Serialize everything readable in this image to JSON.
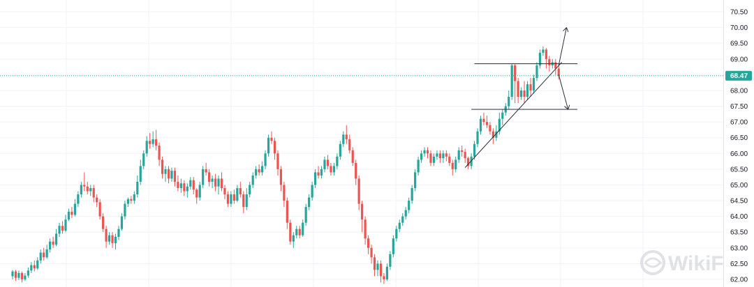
{
  "chart_data": {
    "type": "candlestick",
    "ylim": [
      61.9,
      70.8
    ],
    "yticks": [
      "70.50",
      "70.00",
      "69.50",
      "69.00",
      "68.50",
      "68.00",
      "67.50",
      "67.00",
      "66.50",
      "66.00",
      "65.50",
      "65.00",
      "64.50",
      "64.00",
      "63.50",
      "63.00",
      "62.50",
      "62.00"
    ],
    "current_price": "68.47",
    "grid": true,
    "colors": {
      "up": "#26a69a",
      "down": "#ef5350",
      "grid": "#f0f3fa",
      "axis": "#e0e3eb",
      "price_line": "#26a69a",
      "drawing": "#2a2e39"
    },
    "candles": [
      [
        62.1,
        62.25,
        62.0,
        62.3
      ],
      [
        62.25,
        62.05,
        61.95,
        62.3
      ],
      [
        62.05,
        62.2,
        61.98,
        62.28
      ],
      [
        62.2,
        62.0,
        61.9,
        62.25
      ],
      [
        62.0,
        62.12,
        61.95,
        62.2
      ],
      [
        62.12,
        62.28,
        62.05,
        62.38
      ],
      [
        62.28,
        62.45,
        62.2,
        62.55
      ],
      [
        62.45,
        62.35,
        62.25,
        62.6
      ],
      [
        62.35,
        62.6,
        62.3,
        62.7
      ],
      [
        62.6,
        62.85,
        62.5,
        62.95
      ],
      [
        62.85,
        62.7,
        62.6,
        63.0
      ],
      [
        62.7,
        62.95,
        62.65,
        63.1
      ],
      [
        62.95,
        63.2,
        62.85,
        63.3
      ],
      [
        63.2,
        63.1,
        63.0,
        63.35
      ],
      [
        63.1,
        63.45,
        63.05,
        63.6
      ],
      [
        63.45,
        63.7,
        63.35,
        63.8
      ],
      [
        63.7,
        63.55,
        63.45,
        63.85
      ],
      [
        63.55,
        63.9,
        63.5,
        64.05
      ],
      [
        63.9,
        64.15,
        63.85,
        64.25
      ],
      [
        64.15,
        64.05,
        63.95,
        64.3
      ],
      [
        64.05,
        64.4,
        64.0,
        64.55
      ],
      [
        64.4,
        64.7,
        64.3,
        64.8
      ],
      [
        64.7,
        65.0,
        64.6,
        65.1
      ],
      [
        65.0,
        64.95,
        64.8,
        65.4
      ],
      [
        64.95,
        64.8,
        64.7,
        65.1
      ],
      [
        64.8,
        64.9,
        64.65,
        65.0
      ],
      [
        64.9,
        64.6,
        64.45,
        65.0
      ],
      [
        64.6,
        64.45,
        64.3,
        64.7
      ],
      [
        64.45,
        64.0,
        63.9,
        64.55
      ],
      [
        64.0,
        63.6,
        63.5,
        64.1
      ],
      [
        63.6,
        63.2,
        63.0,
        63.7
      ],
      [
        63.2,
        63.4,
        63.1,
        63.5
      ],
      [
        63.4,
        63.15,
        63.0,
        63.5
      ],
      [
        63.15,
        63.35,
        62.95,
        63.45
      ],
      [
        63.35,
        63.6,
        63.25,
        63.7
      ],
      [
        63.6,
        64.0,
        63.55,
        64.1
      ],
      [
        64.0,
        64.4,
        63.9,
        64.5
      ],
      [
        64.4,
        64.55,
        64.3,
        64.6
      ],
      [
        64.55,
        64.5,
        64.4,
        64.65
      ],
      [
        64.5,
        64.7,
        64.4,
        64.8
      ],
      [
        64.7,
        65.1,
        64.6,
        65.3
      ],
      [
        65.1,
        65.6,
        65.0,
        65.8
      ],
      [
        65.6,
        66.0,
        65.5,
        66.1
      ],
      [
        66.0,
        66.4,
        65.9,
        66.55
      ],
      [
        66.4,
        66.3,
        66.15,
        66.65
      ],
      [
        66.3,
        66.45,
        66.2,
        66.7
      ],
      [
        66.45,
        66.25,
        66.1,
        66.75
      ],
      [
        66.25,
        65.8,
        65.6,
        66.35
      ],
      [
        65.8,
        65.35,
        65.2,
        65.9
      ],
      [
        65.35,
        65.5,
        65.1,
        65.6
      ],
      [
        65.5,
        65.2,
        65.05,
        65.6
      ],
      [
        65.2,
        65.45,
        65.1,
        65.55
      ],
      [
        65.45,
        65.1,
        64.95,
        65.55
      ],
      [
        65.1,
        64.9,
        64.8,
        65.3
      ],
      [
        64.9,
        65.05,
        64.75,
        65.2
      ],
      [
        65.05,
        64.8,
        64.65,
        65.15
      ],
      [
        64.8,
        64.95,
        64.6,
        65.05
      ],
      [
        64.95,
        65.15,
        64.85,
        65.25
      ],
      [
        65.15,
        64.85,
        64.7,
        65.25
      ],
      [
        64.85,
        64.6,
        64.4,
        64.9
      ],
      [
        64.6,
        65.0,
        64.5,
        65.1
      ],
      [
        65.0,
        65.5,
        64.9,
        65.6
      ],
      [
        65.5,
        65.4,
        65.3,
        65.7
      ],
      [
        65.4,
        65.1,
        64.95,
        65.5
      ],
      [
        65.1,
        65.2,
        64.9,
        65.3
      ],
      [
        65.2,
        64.95,
        64.8,
        65.35
      ],
      [
        64.95,
        65.2,
        64.7,
        65.3
      ],
      [
        65.2,
        64.9,
        64.8,
        65.4
      ],
      [
        64.9,
        64.7,
        64.55,
        65.0
      ],
      [
        64.7,
        64.4,
        64.3,
        64.8
      ],
      [
        64.4,
        64.7,
        64.3,
        64.8
      ],
      [
        64.7,
        64.5,
        64.4,
        64.85
      ],
      [
        64.5,
        64.9,
        64.45,
        65.0
      ],
      [
        64.9,
        64.7,
        64.6,
        65.1
      ],
      [
        64.7,
        64.3,
        64.1,
        64.8
      ],
      [
        64.3,
        64.7,
        64.2,
        64.9
      ],
      [
        64.7,
        65.0,
        64.6,
        65.1
      ],
      [
        65.0,
        65.3,
        64.9,
        65.4
      ],
      [
        65.3,
        65.5,
        65.2,
        65.6
      ],
      [
        65.5,
        65.4,
        65.3,
        65.65
      ],
      [
        65.4,
        65.6,
        65.3,
        65.75
      ],
      [
        65.6,
        66.0,
        65.5,
        66.1
      ],
      [
        66.0,
        66.5,
        65.9,
        66.6
      ],
      [
        66.5,
        66.4,
        66.3,
        66.7
      ],
      [
        66.4,
        66.0,
        65.8,
        66.5
      ],
      [
        66.0,
        65.5,
        65.3,
        66.1
      ],
      [
        65.5,
        65.0,
        64.8,
        65.6
      ],
      [
        65.0,
        64.5,
        64.3,
        65.1
      ],
      [
        64.5,
        63.8,
        63.6,
        64.6
      ],
      [
        63.8,
        63.2,
        63.1,
        63.9
      ],
      [
        63.2,
        63.4,
        63.0,
        63.5
      ],
      [
        63.4,
        63.6,
        63.3,
        63.7
      ],
      [
        63.6,
        63.4,
        63.3,
        63.7
      ],
      [
        63.4,
        63.8,
        63.35,
        63.9
      ],
      [
        63.8,
        64.3,
        63.7,
        64.4
      ],
      [
        64.3,
        64.6,
        64.2,
        64.7
      ],
      [
        64.6,
        65.0,
        64.5,
        65.1
      ],
      [
        65.0,
        65.4,
        64.9,
        65.5
      ],
      [
        65.4,
        65.3,
        65.2,
        65.6
      ],
      [
        65.3,
        65.5,
        65.2,
        65.6
      ],
      [
        65.5,
        65.8,
        65.4,
        65.9
      ],
      [
        65.8,
        65.6,
        65.5,
        65.95
      ],
      [
        65.6,
        65.4,
        65.3,
        65.7
      ],
      [
        65.4,
        65.6,
        65.3,
        65.7
      ],
      [
        65.6,
        65.9,
        65.5,
        66.0
      ],
      [
        65.9,
        66.3,
        65.8,
        66.4
      ],
      [
        66.3,
        66.6,
        66.2,
        66.7
      ],
      [
        66.6,
        66.45,
        66.3,
        66.9
      ],
      [
        66.45,
        66.1,
        66.0,
        66.6
      ],
      [
        66.1,
        65.7,
        65.6,
        66.2
      ],
      [
        65.7,
        65.2,
        65.0,
        65.8
      ],
      [
        65.2,
        64.4,
        64.2,
        65.3
      ],
      [
        64.4,
        63.9,
        63.5,
        64.5
      ],
      [
        63.9,
        63.3,
        63.1,
        64.0
      ],
      [
        63.3,
        63.0,
        62.8,
        63.4
      ],
      [
        63.0,
        62.7,
        62.5,
        63.1
      ],
      [
        62.7,
        62.3,
        62.1,
        62.8
      ],
      [
        62.3,
        62.5,
        62.1,
        62.6
      ],
      [
        62.5,
        62.1,
        61.9,
        62.6
      ],
      [
        62.1,
        62.0,
        61.85,
        62.2
      ],
      [
        62.0,
        62.4,
        61.95,
        62.5
      ],
      [
        62.4,
        62.8,
        62.3,
        62.9
      ],
      [
        62.8,
        63.3,
        62.7,
        63.4
      ],
      [
        63.3,
        63.6,
        63.2,
        63.7
      ],
      [
        63.6,
        63.8,
        63.5,
        63.9
      ],
      [
        63.8,
        64.0,
        63.7,
        64.1
      ],
      [
        64.0,
        64.2,
        63.9,
        64.3
      ],
      [
        64.2,
        64.5,
        64.1,
        64.6
      ],
      [
        64.5,
        64.9,
        64.4,
        65.0
      ],
      [
        64.9,
        65.4,
        64.8,
        65.5
      ],
      [
        65.4,
        65.8,
        65.3,
        65.9
      ],
      [
        65.8,
        66.0,
        65.7,
        66.1
      ],
      [
        66.0,
        66.1,
        65.9,
        66.2
      ],
      [
        66.1,
        66.0,
        65.85,
        66.2
      ],
      [
        66.0,
        65.7,
        65.6,
        66.1
      ],
      [
        65.7,
        65.9,
        65.6,
        66.0
      ],
      [
        65.9,
        66.0,
        65.8,
        66.1
      ],
      [
        66.0,
        65.85,
        65.7,
        66.1
      ],
      [
        65.85,
        66.0,
        65.7,
        66.1
      ],
      [
        66.0,
        65.9,
        65.75,
        66.1
      ],
      [
        65.9,
        65.7,
        65.6,
        66.0
      ],
      [
        65.7,
        65.5,
        65.3,
        65.8
      ],
      [
        65.5,
        65.8,
        65.4,
        65.9
      ],
      [
        65.8,
        66.1,
        65.7,
        66.2
      ],
      [
        66.1,
        66.05,
        65.9,
        66.25
      ],
      [
        66.05,
        65.85,
        65.7,
        66.15
      ],
      [
        65.85,
        65.6,
        65.5,
        65.9
      ],
      [
        65.6,
        65.9,
        65.5,
        66.0
      ],
      [
        65.9,
        66.3,
        65.8,
        66.4
      ],
      [
        66.3,
        66.7,
        66.2,
        66.8
      ],
      [
        66.7,
        67.1,
        66.6,
        67.2
      ],
      [
        67.1,
        67.0,
        66.9,
        67.3
      ],
      [
        67.0,
        66.9,
        66.8,
        67.2
      ],
      [
        66.9,
        66.7,
        66.6,
        67.0
      ],
      [
        66.7,
        66.5,
        66.3,
        66.8
      ],
      [
        66.5,
        66.7,
        66.4,
        66.9
      ],
      [
        66.7,
        67.1,
        66.6,
        67.3
      ],
      [
        67.1,
        67.3,
        66.9,
        67.4
      ],
      [
        67.3,
        67.5,
        67.2,
        67.6
      ],
      [
        67.5,
        67.8,
        67.4,
        68.0
      ],
      [
        67.8,
        68.8,
        67.7,
        68.85
      ],
      [
        68.8,
        68.3,
        67.6,
        68.85
      ],
      [
        68.3,
        67.8,
        67.6,
        68.4
      ],
      [
        67.8,
        68.0,
        67.7,
        68.1
      ],
      [
        68.0,
        67.8,
        67.6,
        68.3
      ],
      [
        67.8,
        68.2,
        67.7,
        68.3
      ],
      [
        68.2,
        68.0,
        67.8,
        68.4
      ],
      [
        68.0,
        68.4,
        67.9,
        68.5
      ],
      [
        68.4,
        68.8,
        68.3,
        68.9
      ],
      [
        68.8,
        69.2,
        68.7,
        69.3
      ],
      [
        69.2,
        69.3,
        69.1,
        69.4
      ],
      [
        69.3,
        69.0,
        68.7,
        69.35
      ],
      [
        69.0,
        68.8,
        68.6,
        69.1
      ],
      [
        68.8,
        68.9,
        68.7,
        69.0
      ],
      [
        68.9,
        68.7,
        68.5,
        69.0
      ],
      [
        68.7,
        68.47,
        68.35,
        68.8
      ]
    ],
    "annotations": [
      {
        "type": "trendline",
        "points": [
          [
            145,
            65.55
          ],
          [
            176,
            68.9
          ]
        ]
      },
      {
        "type": "hline",
        "price": 68.85,
        "x_range": [
          148,
          181
        ]
      },
      {
        "type": "hline",
        "price": 67.4,
        "x_range": [
          147,
          181
        ]
      },
      {
        "type": "arrow",
        "points": [
          [
            175,
            68.8
          ],
          [
            177.5,
            70.0
          ]
        ]
      },
      {
        "type": "arrow",
        "points": [
          [
            175,
            68.5
          ],
          [
            178,
            67.4
          ]
        ]
      }
    ]
  },
  "watermark": {
    "text": "WikiFX",
    "icon": "wikifx-logo-icon"
  }
}
